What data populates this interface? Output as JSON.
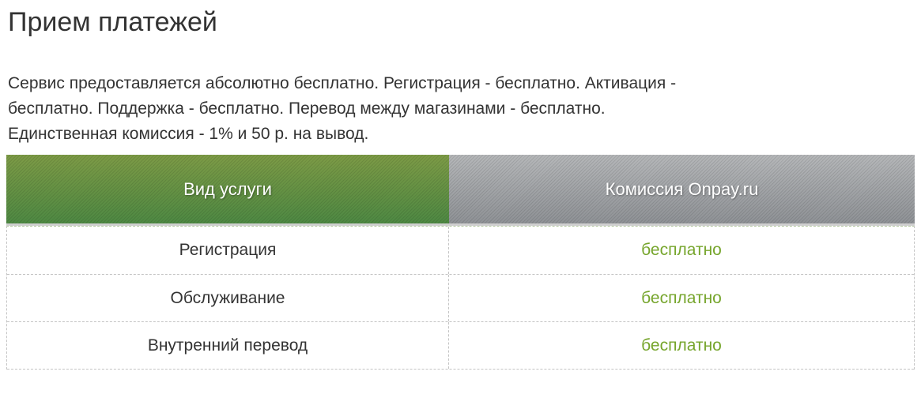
{
  "page": {
    "title": "Прием платежей",
    "description_lines": [
      "Сервис предоставляется абсолютно бесплатно. Регистрация - бесплатно. Активация -",
      "бесплатно. Поддержка - бесплатно. Перевод между магазинами - бесплатно.",
      "Единственная комиссия - 1% и 50 р. на вывод."
    ]
  },
  "table": {
    "columns": [
      {
        "label": "Вид услуги"
      },
      {
        "label": "Комиссия Onpay.ru"
      }
    ],
    "rows": [
      {
        "service": "Регистрация",
        "commission": "бесплатно"
      },
      {
        "service": "Обслуживание",
        "commission": "бесплатно"
      },
      {
        "service": "Внутренний перевод",
        "commission": "бесплатно"
      }
    ]
  },
  "colors": {
    "header_green_top": "#7d9b46",
    "header_green_bottom": "#4e8943",
    "header_gray_top": "#b5b7b9",
    "header_gray_bottom": "#8f9296",
    "value_green": "#76a52c",
    "text": "#333333",
    "dashed_border": "#c4c4c4"
  }
}
